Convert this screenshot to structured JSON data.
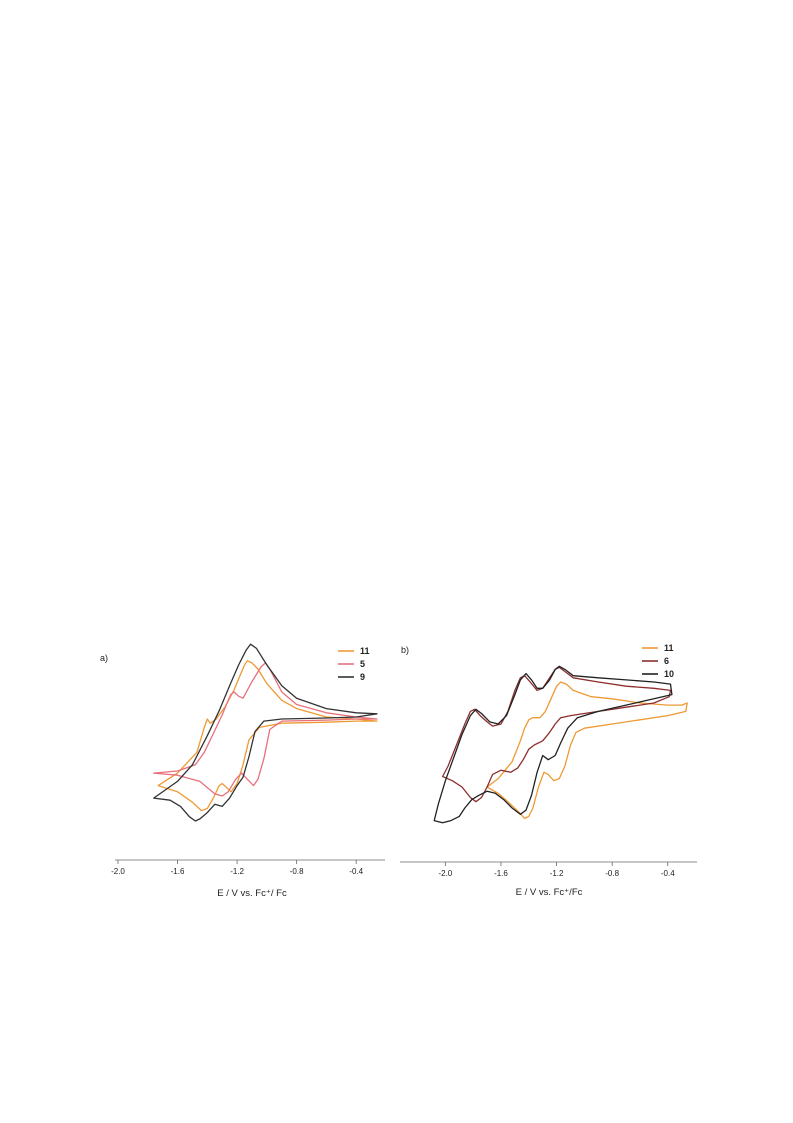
{
  "figure": {
    "panels": [
      {
        "panel_label": "a)"
      },
      {
        "panel_label": "b)"
      }
    ]
  },
  "chart_data": [
    {
      "type": "line",
      "panel": "a)",
      "xlabel": "E / V vs. Fc⁺/ Fc",
      "ylabel": "",
      "xlim": [
        -2.0,
        -0.24
      ],
      "ylim": [
        0,
        1
      ],
      "xticks": [
        "-2.0",
        "-1.6",
        "-1.2",
        "-0.8",
        "-0.4"
      ],
      "xtick_values": [
        -2.0,
        -1.6,
        -1.2,
        -0.8,
        -0.4
      ],
      "y_axis_visible": false,
      "grid": false,
      "legend_position": "top-right",
      "series": [
        {
          "name": "11",
          "color": "#ee9a34",
          "points": [
            [
              -1.73,
              0.3
            ],
            [
              -1.6,
              0.36
            ],
            [
              -1.47,
              0.46
            ],
            [
              -1.42,
              0.58
            ],
            [
              -1.4,
              0.62
            ],
            [
              -1.38,
              0.6
            ],
            [
              -1.34,
              0.62
            ],
            [
              -1.32,
              0.64
            ],
            [
              -1.28,
              0.68
            ],
            [
              -1.22,
              0.76
            ],
            [
              -1.18,
              0.83
            ],
            [
              -1.15,
              0.88
            ],
            [
              -1.13,
              0.9
            ],
            [
              -1.1,
              0.89
            ],
            [
              -1.06,
              0.86
            ],
            [
              -1.0,
              0.79
            ],
            [
              -0.9,
              0.71
            ],
            [
              -0.8,
              0.67
            ],
            [
              -0.6,
              0.63
            ],
            [
              -0.4,
              0.62
            ],
            [
              -0.26,
              0.61
            ],
            [
              -0.4,
              0.61
            ],
            [
              -0.6,
              0.605
            ],
            [
              -0.9,
              0.6
            ],
            [
              -1.05,
              0.58
            ],
            [
              -1.12,
              0.52
            ],
            [
              -1.16,
              0.4
            ],
            [
              -1.2,
              0.31
            ],
            [
              -1.24,
              0.27
            ],
            [
              -1.27,
              0.29
            ],
            [
              -1.3,
              0.31
            ],
            [
              -1.32,
              0.3
            ],
            [
              -1.36,
              0.24
            ],
            [
              -1.4,
              0.19
            ],
            [
              -1.44,
              0.18
            ],
            [
              -1.5,
              0.22
            ],
            [
              -1.6,
              0.27
            ],
            [
              -1.73,
              0.3
            ]
          ]
        },
        {
          "name": "5",
          "color": "#e8707c",
          "points": [
            [
              -1.76,
              0.36
            ],
            [
              -1.6,
              0.37
            ],
            [
              -1.48,
              0.4
            ],
            [
              -1.42,
              0.46
            ],
            [
              -1.36,
              0.55
            ],
            [
              -1.3,
              0.64
            ],
            [
              -1.26,
              0.71
            ],
            [
              -1.24,
              0.74
            ],
            [
              -1.22,
              0.75
            ],
            [
              -1.19,
              0.73
            ],
            [
              -1.16,
              0.72
            ],
            [
              -1.1,
              0.8
            ],
            [
              -1.04,
              0.87
            ],
            [
              -1.01,
              0.89
            ],
            [
              -0.98,
              0.86
            ],
            [
              -0.9,
              0.75
            ],
            [
              -0.8,
              0.69
            ],
            [
              -0.6,
              0.65
            ],
            [
              -0.4,
              0.63
            ],
            [
              -0.26,
              0.62
            ],
            [
              -0.4,
              0.62
            ],
            [
              -0.6,
              0.615
            ],
            [
              -0.9,
              0.61
            ],
            [
              -0.98,
              0.57
            ],
            [
              -1.02,
              0.43
            ],
            [
              -1.06,
              0.33
            ],
            [
              -1.09,
              0.3
            ],
            [
              -1.13,
              0.33
            ],
            [
              -1.17,
              0.36
            ],
            [
              -1.21,
              0.33
            ],
            [
              -1.26,
              0.27
            ],
            [
              -1.3,
              0.25
            ],
            [
              -1.35,
              0.26
            ],
            [
              -1.45,
              0.32
            ],
            [
              -1.6,
              0.35
            ],
            [
              -1.76,
              0.36
            ]
          ]
        },
        {
          "name": "9",
          "color": "#333333",
          "points": [
            [
              -1.76,
              0.24
            ],
            [
              -1.6,
              0.32
            ],
            [
              -1.5,
              0.4
            ],
            [
              -1.4,
              0.54
            ],
            [
              -1.32,
              0.66
            ],
            [
              -1.25,
              0.78
            ],
            [
              -1.19,
              0.88
            ],
            [
              -1.14,
              0.95
            ],
            [
              -1.11,
              0.98
            ],
            [
              -1.07,
              0.96
            ],
            [
              -1.0,
              0.88
            ],
            [
              -0.9,
              0.78
            ],
            [
              -0.8,
              0.72
            ],
            [
              -0.6,
              0.67
            ],
            [
              -0.4,
              0.65
            ],
            [
              -0.26,
              0.645
            ],
            [
              -0.4,
              0.63
            ],
            [
              -0.6,
              0.625
            ],
            [
              -0.9,
              0.62
            ],
            [
              -1.02,
              0.61
            ],
            [
              -1.08,
              0.56
            ],
            [
              -1.12,
              0.44
            ],
            [
              -1.16,
              0.34
            ],
            [
              -1.2,
              0.3
            ],
            [
              -1.25,
              0.24
            ],
            [
              -1.3,
              0.2
            ],
            [
              -1.35,
              0.21
            ],
            [
              -1.4,
              0.17
            ],
            [
              -1.45,
              0.14
            ],
            [
              -1.48,
              0.13
            ],
            [
              -1.52,
              0.15
            ],
            [
              -1.58,
              0.2
            ],
            [
              -1.65,
              0.23
            ],
            [
              -1.76,
              0.24
            ]
          ]
        }
      ]
    },
    {
      "type": "line",
      "panel": "b)",
      "xlabel": "E / V vs. Fc⁺/Fc",
      "ylabel": "",
      "xlim": [
        -2.24,
        -0.24
      ],
      "ylim": [
        0,
        1
      ],
      "xticks": [
        "-2.0",
        "-1.6",
        "-1.2",
        "-0.8",
        "-0.4"
      ],
      "xtick_values": [
        -2.0,
        -1.6,
        -1.2,
        -0.8,
        -0.4
      ],
      "y_axis_visible": false,
      "grid": false,
      "legend_position": "top-right",
      "series": [
        {
          "name": "11",
          "color": "#ee9a34",
          "points": [
            [
              -1.7,
              0.3
            ],
            [
              -1.62,
              0.34
            ],
            [
              -1.52,
              0.42
            ],
            [
              -1.46,
              0.52
            ],
            [
              -1.43,
              0.58
            ],
            [
              -1.4,
              0.62
            ],
            [
              -1.37,
              0.63
            ],
            [
              -1.32,
              0.63
            ],
            [
              -1.28,
              0.66
            ],
            [
              -1.24,
              0.72
            ],
            [
              -1.2,
              0.78
            ],
            [
              -1.17,
              0.8
            ],
            [
              -1.13,
              0.79
            ],
            [
              -1.08,
              0.76
            ],
            [
              -0.95,
              0.73
            ],
            [
              -0.8,
              0.72
            ],
            [
              -0.6,
              0.7
            ],
            [
              -0.4,
              0.69
            ],
            [
              -0.3,
              0.69
            ],
            [
              -0.26,
              0.7
            ],
            [
              -0.27,
              0.66
            ],
            [
              -0.4,
              0.64
            ],
            [
              -0.6,
              0.62
            ],
            [
              -0.8,
              0.6
            ],
            [
              -1.0,
              0.58
            ],
            [
              -1.06,
              0.56
            ],
            [
              -1.1,
              0.5
            ],
            [
              -1.14,
              0.4
            ],
            [
              -1.18,
              0.34
            ],
            [
              -1.22,
              0.33
            ],
            [
              -1.26,
              0.36
            ],
            [
              -1.29,
              0.37
            ],
            [
              -1.33,
              0.3
            ],
            [
              -1.37,
              0.2
            ],
            [
              -1.4,
              0.16
            ],
            [
              -1.43,
              0.15
            ],
            [
              -1.47,
              0.18
            ],
            [
              -1.55,
              0.23
            ],
            [
              -1.62,
              0.27
            ],
            [
              -1.7,
              0.3
            ]
          ]
        },
        {
          "name": "6",
          "color": "#8e2e2e",
          "points": [
            [
              -2.02,
              0.35
            ],
            [
              -1.98,
              0.4
            ],
            [
              -1.92,
              0.5
            ],
            [
              -1.86,
              0.6
            ],
            [
              -1.82,
              0.66
            ],
            [
              -1.79,
              0.67
            ],
            [
              -1.75,
              0.64
            ],
            [
              -1.7,
              0.61
            ],
            [
              -1.66,
              0.59
            ],
            [
              -1.6,
              0.6
            ],
            [
              -1.55,
              0.66
            ],
            [
              -1.5,
              0.76
            ],
            [
              -1.46,
              0.82
            ],
            [
              -1.43,
              0.83
            ],
            [
              -1.39,
              0.8
            ],
            [
              -1.34,
              0.76
            ],
            [
              -1.3,
              0.77
            ],
            [
              -1.25,
              0.82
            ],
            [
              -1.21,
              0.86
            ],
            [
              -1.18,
              0.87
            ],
            [
              -1.14,
              0.85
            ],
            [
              -1.08,
              0.82
            ],
            [
              -0.9,
              0.8
            ],
            [
              -0.7,
              0.78
            ],
            [
              -0.5,
              0.77
            ],
            [
              -0.38,
              0.76
            ],
            [
              -0.39,
              0.73
            ],
            [
              -0.5,
              0.7
            ],
            [
              -0.7,
              0.68
            ],
            [
              -0.9,
              0.66
            ],
            [
              -1.1,
              0.64
            ],
            [
              -1.17,
              0.63
            ],
            [
              -1.21,
              0.6
            ],
            [
              -1.25,
              0.56
            ],
            [
              -1.3,
              0.52
            ],
            [
              -1.36,
              0.5
            ],
            [
              -1.4,
              0.48
            ],
            [
              -1.44,
              0.43
            ],
            [
              -1.48,
              0.39
            ],
            [
              -1.53,
              0.37
            ],
            [
              -1.6,
              0.38
            ],
            [
              -1.66,
              0.36
            ],
            [
              -1.7,
              0.3
            ],
            [
              -1.74,
              0.25
            ],
            [
              -1.78,
              0.23
            ],
            [
              -1.82,
              0.25
            ],
            [
              -1.88,
              0.3
            ],
            [
              -1.95,
              0.33
            ],
            [
              -2.02,
              0.35
            ]
          ]
        },
        {
          "name": "10",
          "color": "#222222",
          "points": [
            [
              -2.08,
              0.14
            ],
            [
              -2.05,
              0.22
            ],
            [
              -2.0,
              0.33
            ],
            [
              -1.94,
              0.44
            ],
            [
              -1.88,
              0.55
            ],
            [
              -1.82,
              0.64
            ],
            [
              -1.78,
              0.67
            ],
            [
              -1.74,
              0.65
            ],
            [
              -1.68,
              0.61
            ],
            [
              -1.62,
              0.6
            ],
            [
              -1.56,
              0.64
            ],
            [
              -1.5,
              0.74
            ],
            [
              -1.46,
              0.81
            ],
            [
              -1.42,
              0.84
            ],
            [
              -1.38,
              0.81
            ],
            [
              -1.34,
              0.77
            ],
            [
              -1.3,
              0.77
            ],
            [
              -1.25,
              0.81
            ],
            [
              -1.21,
              0.86
            ],
            [
              -1.18,
              0.875
            ],
            [
              -1.14,
              0.86
            ],
            [
              -1.08,
              0.83
            ],
            [
              -0.9,
              0.82
            ],
            [
              -0.7,
              0.81
            ],
            [
              -0.5,
              0.8
            ],
            [
              -0.38,
              0.79
            ],
            [
              -0.37,
              0.74
            ],
            [
              -0.5,
              0.72
            ],
            [
              -0.7,
              0.69
            ],
            [
              -0.9,
              0.66
            ],
            [
              -1.05,
              0.63
            ],
            [
              -1.12,
              0.58
            ],
            [
              -1.17,
              0.51
            ],
            [
              -1.21,
              0.45
            ],
            [
              -1.26,
              0.43
            ],
            [
              -1.3,
              0.45
            ],
            [
              -1.34,
              0.37
            ],
            [
              -1.38,
              0.26
            ],
            [
              -1.42,
              0.19
            ],
            [
              -1.46,
              0.17
            ],
            [
              -1.52,
              0.2
            ],
            [
              -1.58,
              0.24
            ],
            [
              -1.64,
              0.27
            ],
            [
              -1.7,
              0.28
            ],
            [
              -1.76,
              0.26
            ],
            [
              -1.81,
              0.24
            ],
            [
              -1.86,
              0.2
            ],
            [
              -1.9,
              0.16
            ],
            [
              -1.96,
              0.14
            ],
            [
              -2.02,
              0.13
            ],
            [
              -2.08,
              0.14
            ]
          ]
        }
      ]
    }
  ]
}
